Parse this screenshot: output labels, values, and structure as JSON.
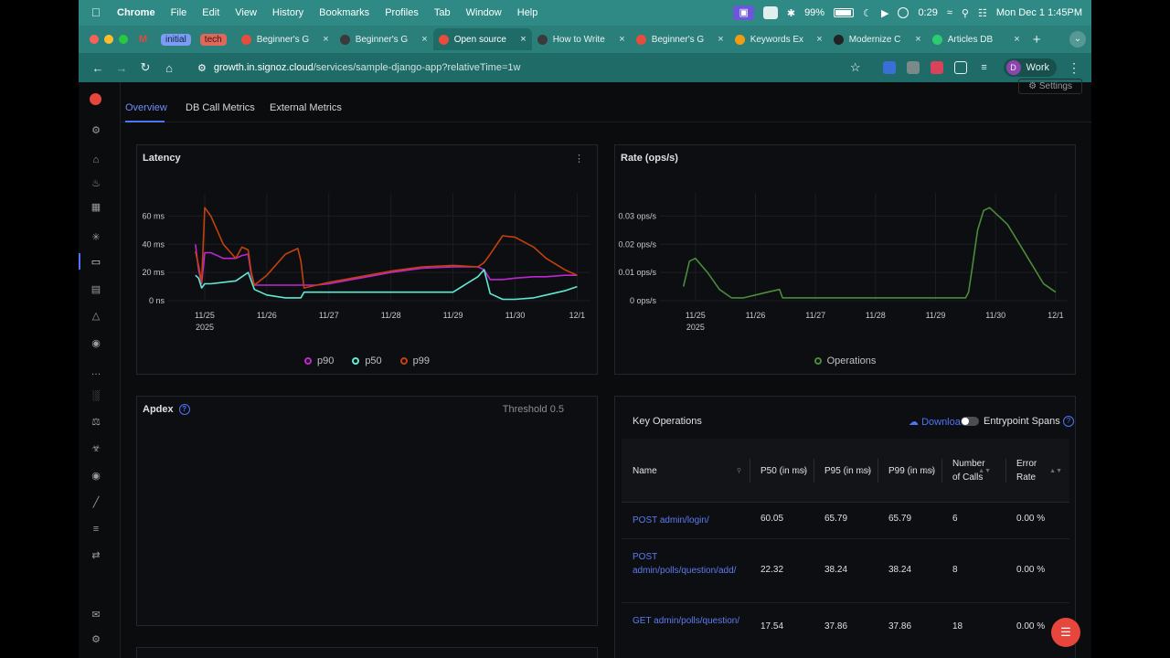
{
  "menubar": {
    "app": "Chrome",
    "items": [
      "File",
      "Edit",
      "View",
      "History",
      "Bookmarks",
      "Profiles",
      "Tab",
      "Window",
      "Help"
    ],
    "battery": "99%",
    "timer": "0:29",
    "datetime": "Mon Dec 1  1:45PM"
  },
  "tabstrip": {
    "groups": [
      {
        "label": "initial",
        "color": "#7b9cf2"
      },
      {
        "label": "tech",
        "color": "#e0685a"
      }
    ],
    "tabs": [
      {
        "title": "Beginner's G",
        "active": false,
        "favicon_color": "#e74c3c"
      },
      {
        "title": "Beginner's G",
        "active": false,
        "favicon_color": "#3a3a3a"
      },
      {
        "title": "Open source",
        "active": true,
        "favicon_color": "#e74c3c"
      },
      {
        "title": "How to Write",
        "active": false,
        "favicon_color": "#3a3a3a"
      },
      {
        "title": "Beginner's G",
        "active": false,
        "favicon_color": "#e74c3c"
      },
      {
        "title": "Keywords Ex",
        "active": false,
        "favicon_color": "#f39c12"
      },
      {
        "title": "Modernize C",
        "active": false,
        "favicon_color": "#222222"
      },
      {
        "title": "Articles DB",
        "active": false,
        "favicon_color": "#2ecc71"
      }
    ]
  },
  "address": {
    "host": "growth.in.signoz.cloud",
    "path": "/services/sample-django-app?relativeTime=1w",
    "profile_initial": "D",
    "profile_name": "Work"
  },
  "app": {
    "settings_label": "Settings",
    "tabs": [
      "Overview",
      "DB Call Metrics",
      "External Metrics"
    ],
    "latency": {
      "title": "Latency"
    },
    "rate": {
      "title": "Rate (ops/s)"
    },
    "apdex": {
      "title": "Apdex",
      "threshold": "Threshold 0.5"
    },
    "key_operations": {
      "title": "Key Operations",
      "download": "Download",
      "entrypoint": "Entrypoint Spans",
      "columns": [
        "Name",
        "P50 (in ms)",
        "P95 (in ms)",
        "P99 (in ms)",
        "Number of Calls",
        "Error Rate"
      ],
      "rows": [
        {
          "name": "POST admin/login/",
          "p50": "60.05",
          "p95": "65.79",
          "p99": "65.79",
          "calls": "6",
          "error": "0.00 %"
        },
        {
          "name": "POST admin/polls/question/add/",
          "p50": "22.32",
          "p95": "38.24",
          "p99": "38.24",
          "calls": "8",
          "error": "0.00 %"
        },
        {
          "name": "GET admin/polls/question/",
          "p50": "17.54",
          "p95": "37.86",
          "p99": "37.86",
          "calls": "18",
          "error": "0.00 %"
        }
      ]
    }
  },
  "chart_data": [
    {
      "type": "line",
      "title": "Latency",
      "x_ticks": [
        "11/25",
        "11/26",
        "11/27",
        "11/28",
        "11/29",
        "11/30",
        "12/1"
      ],
      "x_sublabel": "2025",
      "y_ticks": [
        "0 ns",
        "20 ms",
        "40 ms",
        "60 ms"
      ],
      "ylim": [
        0,
        70
      ],
      "x": [
        24.85,
        24.9,
        24.95,
        25.0,
        25.1,
        25.3,
        25.5,
        25.6,
        25.7,
        25.75,
        25.8,
        26.0,
        26.3,
        26.5,
        26.55,
        26.6,
        26.8,
        27.0,
        27.5,
        28.0,
        28.5,
        29.0,
        29.4,
        29.5,
        29.6,
        29.8,
        30.0,
        30.3,
        30.5,
        30.8,
        31.0
      ],
      "series": [
        {
          "name": "p90",
          "color": "#c026d3",
          "values": [
            40,
            22,
            12,
            34,
            34,
            30,
            30,
            32,
            33,
            18,
            11,
            11,
            11,
            11,
            11,
            11,
            11,
            12,
            16,
            20,
            23,
            24,
            24,
            22,
            15,
            15,
            16,
            17,
            17,
            18,
            18
          ]
        },
        {
          "name": "p50",
          "color": "#5eead4",
          "values": [
            18,
            16,
            9,
            12,
            12,
            13,
            14,
            17,
            20,
            14,
            8,
            4,
            2,
            2,
            2,
            6,
            6,
            6,
            6,
            6,
            6,
            6,
            17,
            22,
            5,
            1,
            1,
            2,
            4,
            7,
            10
          ]
        },
        {
          "name": "p99",
          "color": "#c2410c",
          "values": [
            35,
            25,
            13,
            66,
            60,
            40,
            30,
            38,
            36,
            20,
            11,
            18,
            33,
            37,
            28,
            9,
            11,
            13,
            17,
            21,
            24,
            25,
            24,
            27,
            33,
            46,
            45,
            38,
            30,
            22,
            18
          ]
        }
      ]
    },
    {
      "type": "line",
      "title": "Rate (ops/s)",
      "x_ticks": [
        "11/25",
        "11/26",
        "11/27",
        "11/28",
        "11/29",
        "11/30",
        "12/1"
      ],
      "x_sublabel": "2025",
      "y_ticks": [
        "0 ops/s",
        "0.01 ops/s",
        "0.02 ops/s",
        "0.03 ops/s"
      ],
      "ylim": [
        0,
        0.035
      ],
      "x": [
        24.8,
        24.9,
        25.0,
        25.2,
        25.4,
        25.6,
        25.8,
        26.0,
        26.2,
        26.4,
        26.45,
        26.5,
        26.7,
        27.0,
        27.5,
        28.0,
        28.5,
        29.0,
        29.5,
        29.55,
        29.6,
        29.7,
        29.8,
        29.9,
        30.0,
        30.2,
        30.4,
        30.6,
        30.8,
        31.0
      ],
      "series": [
        {
          "name": "Operations",
          "color": "#4a8c3a",
          "values": [
            0.005,
            0.014,
            0.015,
            0.01,
            0.004,
            0.001,
            0.001,
            0.002,
            0.003,
            0.004,
            0.001,
            0.001,
            0.001,
            0.001,
            0.001,
            0.001,
            0.001,
            0.001,
            0.001,
            0.003,
            0.01,
            0.025,
            0.032,
            0.033,
            0.031,
            0.027,
            0.02,
            0.013,
            0.006,
            0.003
          ]
        }
      ]
    }
  ]
}
